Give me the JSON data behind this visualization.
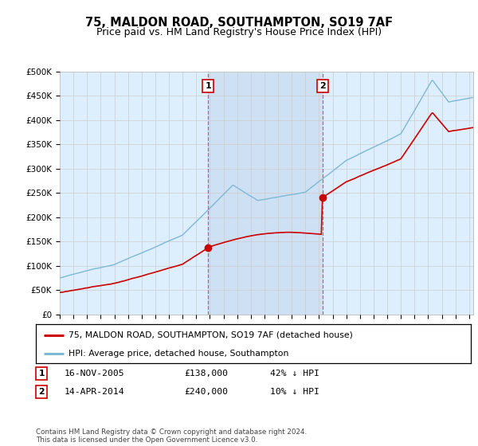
{
  "title": "75, MALDON ROAD, SOUTHAMPTON, SO19 7AF",
  "subtitle": "Price paid vs. HM Land Registry's House Price Index (HPI)",
  "ylim": [
    0,
    500000
  ],
  "yticks": [
    0,
    50000,
    100000,
    150000,
    200000,
    250000,
    300000,
    350000,
    400000,
    450000,
    500000
  ],
  "xlim_start": 1995.0,
  "xlim_end": 2025.3,
  "sale1_date": 2005.88,
  "sale1_price": 138000,
  "sale2_date": 2014.29,
  "sale2_price": 240000,
  "red_line_color": "#cc0000",
  "blue_line_color": "#7eb8d4",
  "grid_color": "#cccccc",
  "bg_color": "#ddeeff",
  "shade_color": "#c8dcf0",
  "annotation_box_color": "#cc0000",
  "legend_label_red": "75, MALDON ROAD, SOUTHAMPTON, SO19 7AF (detached house)",
  "legend_label_blue": "HPI: Average price, detached house, Southampton",
  "table_row1": [
    "1",
    "16-NOV-2005",
    "£138,000",
    "42% ↓ HPI"
  ],
  "table_row2": [
    "2",
    "14-APR-2014",
    "£240,000",
    "10% ↓ HPI"
  ],
  "footer": "Contains HM Land Registry data © Crown copyright and database right 2024.\nThis data is licensed under the Open Government Licence v3.0.",
  "title_fontsize": 10.5,
  "subtitle_fontsize": 9
}
